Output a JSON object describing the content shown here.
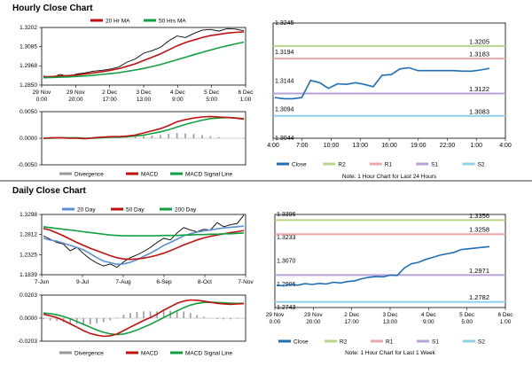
{
  "colors": {
    "red": "#c01010",
    "green": "#10a040",
    "black": "#000000",
    "blue": "#1e6fb5",
    "bluelight": "#5b8fd0",
    "r2": "#b8d48a",
    "r1": "#e8a8a8",
    "s1": "#b8a0d8",
    "s2": "#90d0e8",
    "hist": "#999999"
  },
  "hourly": {
    "title": "Hourly Close Chart",
    "price": {
      "legend": [
        "20 Hr MA",
        "50 Hrs MA"
      ],
      "yticks": [
        "1.3202",
        "1.3085",
        "1.2968",
        "1.2850"
      ],
      "ylim": [
        1.285,
        1.3202
      ],
      "xlabels": [
        [
          "29 Nov",
          "0:00"
        ],
        [
          "29 Nov",
          "20:00"
        ],
        [
          "2 Dec",
          "17:00"
        ],
        [
          "3 Dec",
          "13:00"
        ],
        [
          "4 Dec",
          "9:00"
        ],
        [
          "5 Dec",
          "5:00"
        ],
        [
          "6 Dec",
          "1:00"
        ]
      ],
      "close": [
        1.2905,
        1.2895,
        1.2915,
        1.2902,
        1.2918,
        1.2925,
        1.2935,
        1.294,
        1.2948,
        1.296,
        1.299,
        1.301,
        1.3045,
        1.306,
        1.308,
        1.312,
        1.315,
        1.314,
        1.3165,
        1.3185,
        1.319,
        1.318,
        1.3195,
        1.3192,
        1.3182
      ],
      "ma20": [
        1.29,
        1.2902,
        1.2905,
        1.2908,
        1.2912,
        1.2918,
        1.2925,
        1.2932,
        1.294,
        1.295,
        1.2965,
        1.298,
        1.3,
        1.302,
        1.304,
        1.3065,
        1.309,
        1.311,
        1.3125,
        1.314,
        1.3152,
        1.316,
        1.3168,
        1.3172,
        1.3175
      ],
      "ma50": [
        1.2895,
        1.2896,
        1.2898,
        1.29,
        1.2903,
        1.2906,
        1.291,
        1.2915,
        1.292,
        1.2926,
        1.2934,
        1.2942,
        1.2952,
        1.2963,
        1.2975,
        1.299,
        1.3005,
        1.302,
        1.3035,
        1.305,
        1.3064,
        1.3078,
        1.309,
        1.3102,
        1.3112
      ]
    },
    "macd": {
      "yticks": [
        "0.0050",
        "0.0000",
        "-0.0050"
      ],
      "ylim": [
        -0.005,
        0.005
      ],
      "legend": [
        "Divergence",
        "MACD",
        "MACD Signal Line"
      ],
      "macd": [
        0.0,
        0.0001,
        0.0001,
        0.0,
        0.0,
        -0.0001,
        0.0001,
        0.0002,
        0.0003,
        0.0003,
        0.0004,
        0.0006,
        0.001,
        0.0014,
        0.0018,
        0.0024,
        0.0031,
        0.0035,
        0.0038,
        0.004,
        0.0041,
        0.004,
        0.0039,
        0.0038,
        0.0036
      ],
      "signal": [
        0.0,
        0.0,
        0.0001,
        0.0001,
        0.0001,
        0.0,
        0.0,
        0.0001,
        0.0002,
        0.0002,
        0.0003,
        0.0004,
        0.0006,
        0.0009,
        0.0012,
        0.0016,
        0.0021,
        0.0026,
        0.003,
        0.0034,
        0.0037,
        0.0038,
        0.0039,
        0.0038,
        0.0037
      ],
      "divergence": [
        0.0,
        0.0001,
        0.0,
        -0.0001,
        -0.0001,
        -0.0001,
        0.0001,
        0.0001,
        0.0001,
        0.0001,
        0.0001,
        0.0002,
        0.0004,
        0.0005,
        0.0006,
        0.0008,
        0.001,
        0.0009,
        0.0008,
        0.0006,
        0.0004,
        0.0002,
        0.0,
        0.0,
        -0.0001
      ]
    },
    "levels": {
      "yticks": [
        "1.3245",
        "1.3194",
        "1.3144",
        "1.3094",
        "1.3044"
      ],
      "ylim": [
        1.3044,
        1.3245
      ],
      "xlabels": [
        "4:00",
        "7:00",
        "10:00",
        "13:00",
        "16:00",
        "19:00",
        "22:00",
        "1:00",
        "4:00"
      ],
      "close": [
        1.3115,
        1.3113,
        1.3113,
        1.3115,
        1.3145,
        1.3141,
        1.3131,
        1.3139,
        1.3138,
        1.3141,
        1.3138,
        1.3134,
        1.3154,
        1.3155,
        1.3165,
        1.3167,
        1.3162,
        1.3162,
        1.3162,
        1.3162,
        1.3162,
        1.3161,
        1.3161,
        1.3163,
        1.3166
      ],
      "lines": [
        {
          "name": "R2",
          "value": 1.3205,
          "label": "1.3205"
        },
        {
          "name": "R1",
          "value": 1.3183,
          "label": "1.3183"
        },
        {
          "name": "S1",
          "value": 1.3122,
          "label": "1.3122"
        },
        {
          "name": "S2",
          "value": 1.3083,
          "label": "1.3083"
        }
      ],
      "legend": [
        "Close",
        "R2",
        "R1",
        "S1",
        "S2"
      ],
      "note": "Note: 1 Hour Chart for Last 24 Hours"
    }
  },
  "daily": {
    "title": "Daily Close Chart",
    "price": {
      "legend": [
        "20 Day",
        "50 Day",
        "200 Day"
      ],
      "yticks": [
        "1.3298",
        "1.2812",
        "1.2325",
        "1.1839"
      ],
      "ylim": [
        1.1839,
        1.3298
      ],
      "xlabels": [
        "7-Jun",
        "9-Jul",
        "7-Aug",
        "6-Sep",
        "8-Oct",
        "7-Nov"
      ],
      "close": [
        1.278,
        1.27,
        1.262,
        1.258,
        1.242,
        1.25,
        1.235,
        1.222,
        1.212,
        1.205,
        1.21,
        1.202,
        1.215,
        1.225,
        1.232,
        1.24,
        1.25,
        1.262,
        1.272,
        1.268,
        1.285,
        1.298,
        1.292,
        1.288,
        1.294,
        1.292,
        1.31,
        1.3,
        1.305,
        1.308,
        1.328
      ],
      "ma20": [
        1.272,
        1.268,
        1.265,
        1.26,
        1.255,
        1.25,
        1.244,
        1.235,
        1.225,
        1.217,
        1.213,
        1.209,
        1.21,
        1.214,
        1.22,
        1.228,
        1.236,
        1.245,
        1.255,
        1.262,
        1.27,
        1.278,
        1.283,
        1.287,
        1.29,
        1.292,
        1.295,
        1.297,
        1.299,
        1.3,
        1.302
      ],
      "ma50": [
        1.296,
        1.292,
        1.285,
        1.278,
        1.27,
        1.262,
        1.255,
        1.248,
        1.242,
        1.236,
        1.23,
        1.225,
        1.222,
        1.221,
        1.222,
        1.224,
        1.227,
        1.231,
        1.236,
        1.242,
        1.249,
        1.256,
        1.262,
        1.268,
        1.273,
        1.277,
        1.28,
        1.283,
        1.286,
        1.288,
        1.291
      ],
      "ma200": [
        1.3,
        1.298,
        1.296,
        1.294,
        1.292,
        1.29,
        1.288,
        1.286,
        1.284,
        1.282,
        1.28,
        1.279,
        1.278,
        1.278,
        1.278,
        1.278,
        1.278,
        1.278,
        1.279,
        1.279,
        1.279,
        1.28,
        1.28,
        1.281,
        1.281,
        1.282,
        1.282,
        1.283,
        1.283,
        1.284,
        1.285
      ]
    },
    "macd": {
      "yticks": [
        "0.0203",
        "0.0000",
        "-0.0203"
      ],
      "ylim": [
        -0.0203,
        0.0203
      ],
      "legend": [
        "Divergence",
        "MACD",
        "MACD Signal Line"
      ],
      "macd": [
        0.0035,
        0.002,
        0.0005,
        -0.002,
        -0.005,
        -0.008,
        -0.011,
        -0.0135,
        -0.015,
        -0.016,
        -0.0155,
        -0.014,
        -0.011,
        -0.008,
        -0.005,
        -0.002,
        0.0005,
        0.0035,
        0.007,
        0.01,
        0.013,
        0.015,
        0.016,
        0.0158,
        0.015,
        0.014,
        0.013,
        0.0125,
        0.0122,
        0.0125,
        0.0128
      ],
      "signal": [
        0.0045,
        0.004,
        0.003,
        0.0015,
        -0.0005,
        -0.003,
        -0.0055,
        -0.008,
        -0.0105,
        -0.0125,
        -0.0138,
        -0.0145,
        -0.014,
        -0.0125,
        -0.0105,
        -0.008,
        -0.0055,
        -0.0025,
        0.0005,
        0.0035,
        0.0065,
        0.0092,
        0.0115,
        0.013,
        0.0138,
        0.014,
        0.0138,
        0.0135,
        0.0132,
        0.013,
        0.013
      ],
      "divergence": [
        -0.001,
        -0.002,
        -0.0025,
        -0.0035,
        -0.0045,
        -0.005,
        -0.0055,
        -0.0055,
        -0.0045,
        -0.0035,
        -0.0017,
        0.0005,
        0.003,
        0.0045,
        0.0055,
        0.006,
        0.006,
        0.006,
        0.0065,
        0.0065,
        0.0065,
        0.0058,
        0.0045,
        0.0028,
        0.0012,
        0.0,
        -0.0008,
        -0.001,
        -0.001,
        -0.0005,
        -0.0002
      ]
    },
    "levels": {
      "yticks": [
        "1.3396",
        "1.3233",
        "1.3070",
        "1.2906",
        "1.2743"
      ],
      "ylim": [
        1.2743,
        1.3396
      ],
      "xlabels": [
        [
          "29 Nov",
          "0:00"
        ],
        [
          "29 Nov",
          "20:00"
        ],
        [
          "2 Dec",
          "17:00"
        ],
        [
          "3 Dec",
          "13:00"
        ],
        [
          "4 Dec",
          "9:00"
        ],
        [
          "5 Dec",
          "5:00"
        ],
        [
          "6 Dec",
          "1:00"
        ]
      ],
      "close": [
        1.29,
        1.2895,
        1.2905,
        1.29,
        1.291,
        1.2905,
        1.2912,
        1.2908,
        1.292,
        1.2915,
        1.2925,
        1.293,
        1.2945,
        1.2955,
        1.296,
        1.2958,
        1.297,
        1.2968,
        1.302,
        1.305,
        1.306,
        1.308,
        1.3095,
        1.311,
        1.312,
        1.313,
        1.315,
        1.3155,
        1.316,
        1.3165,
        1.317
      ],
      "lines": [
        {
          "name": "R2",
          "value": 1.3356,
          "label": "1.3356"
        },
        {
          "name": "R1",
          "value": 1.3258,
          "label": "1.3258"
        },
        {
          "name": "S1",
          "value": 1.2971,
          "label": "1.2971"
        },
        {
          "name": "S2",
          "value": 1.2782,
          "label": "1.2782"
        }
      ],
      "legend": [
        "Close",
        "R2",
        "R1",
        "S1",
        "S2"
      ],
      "note": "Note: 1 Hour Chart for Last 1 Week"
    }
  },
  "chart_data": [
    {
      "type": "line",
      "title": "Hourly Close Chart - Price",
      "series": [
        "Close",
        "20 Hr MA",
        "50 Hrs MA"
      ],
      "ylim": [
        1.285,
        1.3202
      ],
      "xlabels": [
        "29 Nov 0:00",
        "29 Nov 20:00",
        "2 Dec 17:00",
        "3 Dec 13:00",
        "4 Dec 9:00",
        "5 Dec 5:00",
        "6 Dec 1:00"
      ]
    },
    {
      "type": "line",
      "title": "Hourly Close Chart - MACD",
      "series": [
        "Divergence",
        "MACD",
        "MACD Signal Line"
      ],
      "ylim": [
        -0.005,
        0.005
      ]
    },
    {
      "type": "line",
      "title": "Hourly Close - Pivot Levels",
      "series": [
        "Close",
        "R2",
        "R1",
        "S1",
        "S2"
      ],
      "levels": {
        "R2": 1.3205,
        "R1": 1.3183,
        "S1": 1.3122,
        "S2": 1.3083
      },
      "ylim": [
        1.3044,
        1.3245
      ]
    },
    {
      "type": "line",
      "title": "Daily Close Chart - Price",
      "series": [
        "20 Day",
        "50 Day",
        "200 Day"
      ],
      "ylim": [
        1.1839,
        1.3298
      ],
      "xlabels": [
        "7-Jun",
        "9-Jul",
        "7-Aug",
        "6-Sep",
        "8-Oct",
        "7-Nov"
      ]
    },
    {
      "type": "line",
      "title": "Daily Close Chart - MACD",
      "series": [
        "Divergence",
        "MACD",
        "MACD Signal Line"
      ],
      "ylim": [
        -0.0203,
        0.0203
      ]
    },
    {
      "type": "line",
      "title": "Daily Close - Pivot Levels",
      "series": [
        "Close",
        "R2",
        "R1",
        "S1",
        "S2"
      ],
      "levels": {
        "R2": 1.3356,
        "R1": 1.3258,
        "S1": 1.2971,
        "S2": 1.2782
      },
      "ylim": [
        1.2743,
        1.3396
      ]
    }
  ]
}
